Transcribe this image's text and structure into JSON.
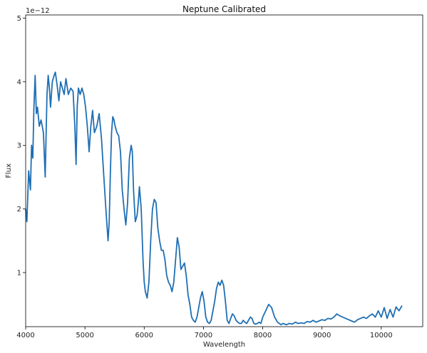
{
  "chart_data": {
    "type": "line",
    "title": "Neptune Calibrated",
    "xlabel": "Wavelength",
    "ylabel": "Flux",
    "offset_text": "1e−12",
    "xlim": [
      4000,
      10700
    ],
    "ylim": [
      0.15,
      5.05
    ],
    "xticks": [
      4000,
      5000,
      6000,
      7000,
      8000,
      9000,
      10000
    ],
    "xtick_labels": [
      "4000",
      "5000",
      "6000",
      "7000",
      "8000",
      "9000",
      "10000"
    ],
    "yticks": [
      1,
      2,
      3,
      4,
      5
    ],
    "ytick_labels": [
      "1",
      "2",
      "3",
      "4",
      "5"
    ],
    "grid": false,
    "series": [
      {
        "color": "#1f6fb4",
        "x": [
          4000,
          4020,
          4050,
          4080,
          4100,
          4120,
          4140,
          4160,
          4180,
          4200,
          4230,
          4260,
          4300,
          4330,
          4360,
          4380,
          4400,
          4420,
          4450,
          4480,
          4500,
          4530,
          4560,
          4590,
          4620,
          4650,
          4680,
          4720,
          4760,
          4800,
          4830,
          4850,
          4870,
          4890,
          4920,
          4950,
          4980,
          5010,
          5040,
          5070,
          5100,
          5130,
          5160,
          5200,
          5240,
          5280,
          5320,
          5360,
          5390,
          5410,
          5430,
          5450,
          5470,
          5490,
          5510,
          5540,
          5570,
          5600,
          5630,
          5660,
          5690,
          5720,
          5750,
          5780,
          5800,
          5820,
          5850,
          5880,
          5900,
          5920,
          5950,
          5980,
          6000,
          6020,
          6050,
          6080,
          6110,
          6140,
          6170,
          6200,
          6230,
          6260,
          6290,
          6320,
          6350,
          6380,
          6410,
          6440,
          6470,
          6500,
          6530,
          6560,
          6590,
          6620,
          6650,
          6680,
          6710,
          6740,
          6770,
          6800,
          6830,
          6860,
          6890,
          6920,
          6950,
          6980,
          7010,
          7040,
          7070,
          7100,
          7130,
          7160,
          7190,
          7220,
          7250,
          7280,
          7310,
          7340,
          7370,
          7400,
          7430,
          7460,
          7490,
          7520,
          7550,
          7580,
          7610,
          7640,
          7670,
          7700,
          7730,
          7760,
          7790,
          7820,
          7850,
          7880,
          7910,
          7940,
          7970,
          8000,
          8050,
          8100,
          8150,
          8200,
          8250,
          8280,
          8310,
          8340,
          8370,
          8400,
          8450,
          8500,
          8550,
          8600,
          8650,
          8700,
          8750,
          8800,
          8850,
          8900,
          8950,
          9000,
          9050,
          9100,
          9150,
          9200,
          9250,
          9300,
          9350,
          9400,
          9450,
          9500,
          9550,
          9600,
          9650,
          9700,
          9750,
          9800,
          9850,
          9900,
          9950,
          10000,
          10050,
          10100,
          10150,
          10200,
          10250,
          10300,
          10350
        ],
        "y": [
          2.0,
          1.8,
          2.6,
          2.3,
          3.0,
          2.8,
          3.6,
          4.1,
          3.5,
          3.6,
          3.3,
          3.4,
          3.2,
          2.5,
          3.8,
          4.1,
          3.9,
          3.6,
          4.0,
          4.1,
          4.15,
          3.95,
          3.7,
          4.0,
          3.9,
          3.8,
          4.05,
          3.8,
          3.9,
          3.85,
          3.3,
          2.7,
          3.6,
          3.9,
          3.8,
          3.9,
          3.8,
          3.6,
          3.3,
          2.9,
          3.3,
          3.55,
          3.2,
          3.3,
          3.5,
          3.1,
          2.5,
          1.9,
          1.5,
          1.8,
          2.6,
          3.2,
          3.45,
          3.4,
          3.3,
          3.2,
          3.15,
          2.9,
          2.3,
          2.0,
          1.75,
          2.1,
          2.8,
          3.0,
          2.9,
          2.3,
          1.8,
          1.9,
          2.1,
          2.35,
          2.0,
          1.2,
          0.85,
          0.7,
          0.6,
          0.85,
          1.5,
          2.0,
          2.15,
          2.1,
          1.7,
          1.5,
          1.35,
          1.35,
          1.2,
          0.95,
          0.85,
          0.8,
          0.7,
          0.85,
          1.2,
          1.55,
          1.4,
          1.05,
          1.1,
          1.15,
          0.95,
          0.65,
          0.5,
          0.3,
          0.25,
          0.22,
          0.3,
          0.45,
          0.6,
          0.7,
          0.55,
          0.3,
          0.22,
          0.2,
          0.25,
          0.4,
          0.55,
          0.75,
          0.85,
          0.8,
          0.88,
          0.8,
          0.55,
          0.25,
          0.2,
          0.28,
          0.35,
          0.32,
          0.25,
          0.22,
          0.2,
          0.2,
          0.25,
          0.22,
          0.2,
          0.25,
          0.3,
          0.28,
          0.2,
          0.19,
          0.2,
          0.22,
          0.2,
          0.3,
          0.4,
          0.5,
          0.45,
          0.3,
          0.22,
          0.2,
          0.18,
          0.2,
          0.19,
          0.18,
          0.2,
          0.19,
          0.22,
          0.2,
          0.21,
          0.2,
          0.23,
          0.22,
          0.25,
          0.22,
          0.24,
          0.26,
          0.25,
          0.28,
          0.27,
          0.3,
          0.35,
          0.32,
          0.3,
          0.28,
          0.26,
          0.24,
          0.22,
          0.26,
          0.28,
          0.3,
          0.28,
          0.32,
          0.35,
          0.3,
          0.4,
          0.3,
          0.45,
          0.28,
          0.42,
          0.3,
          0.46,
          0.4,
          0.48
        ]
      }
    ]
  }
}
